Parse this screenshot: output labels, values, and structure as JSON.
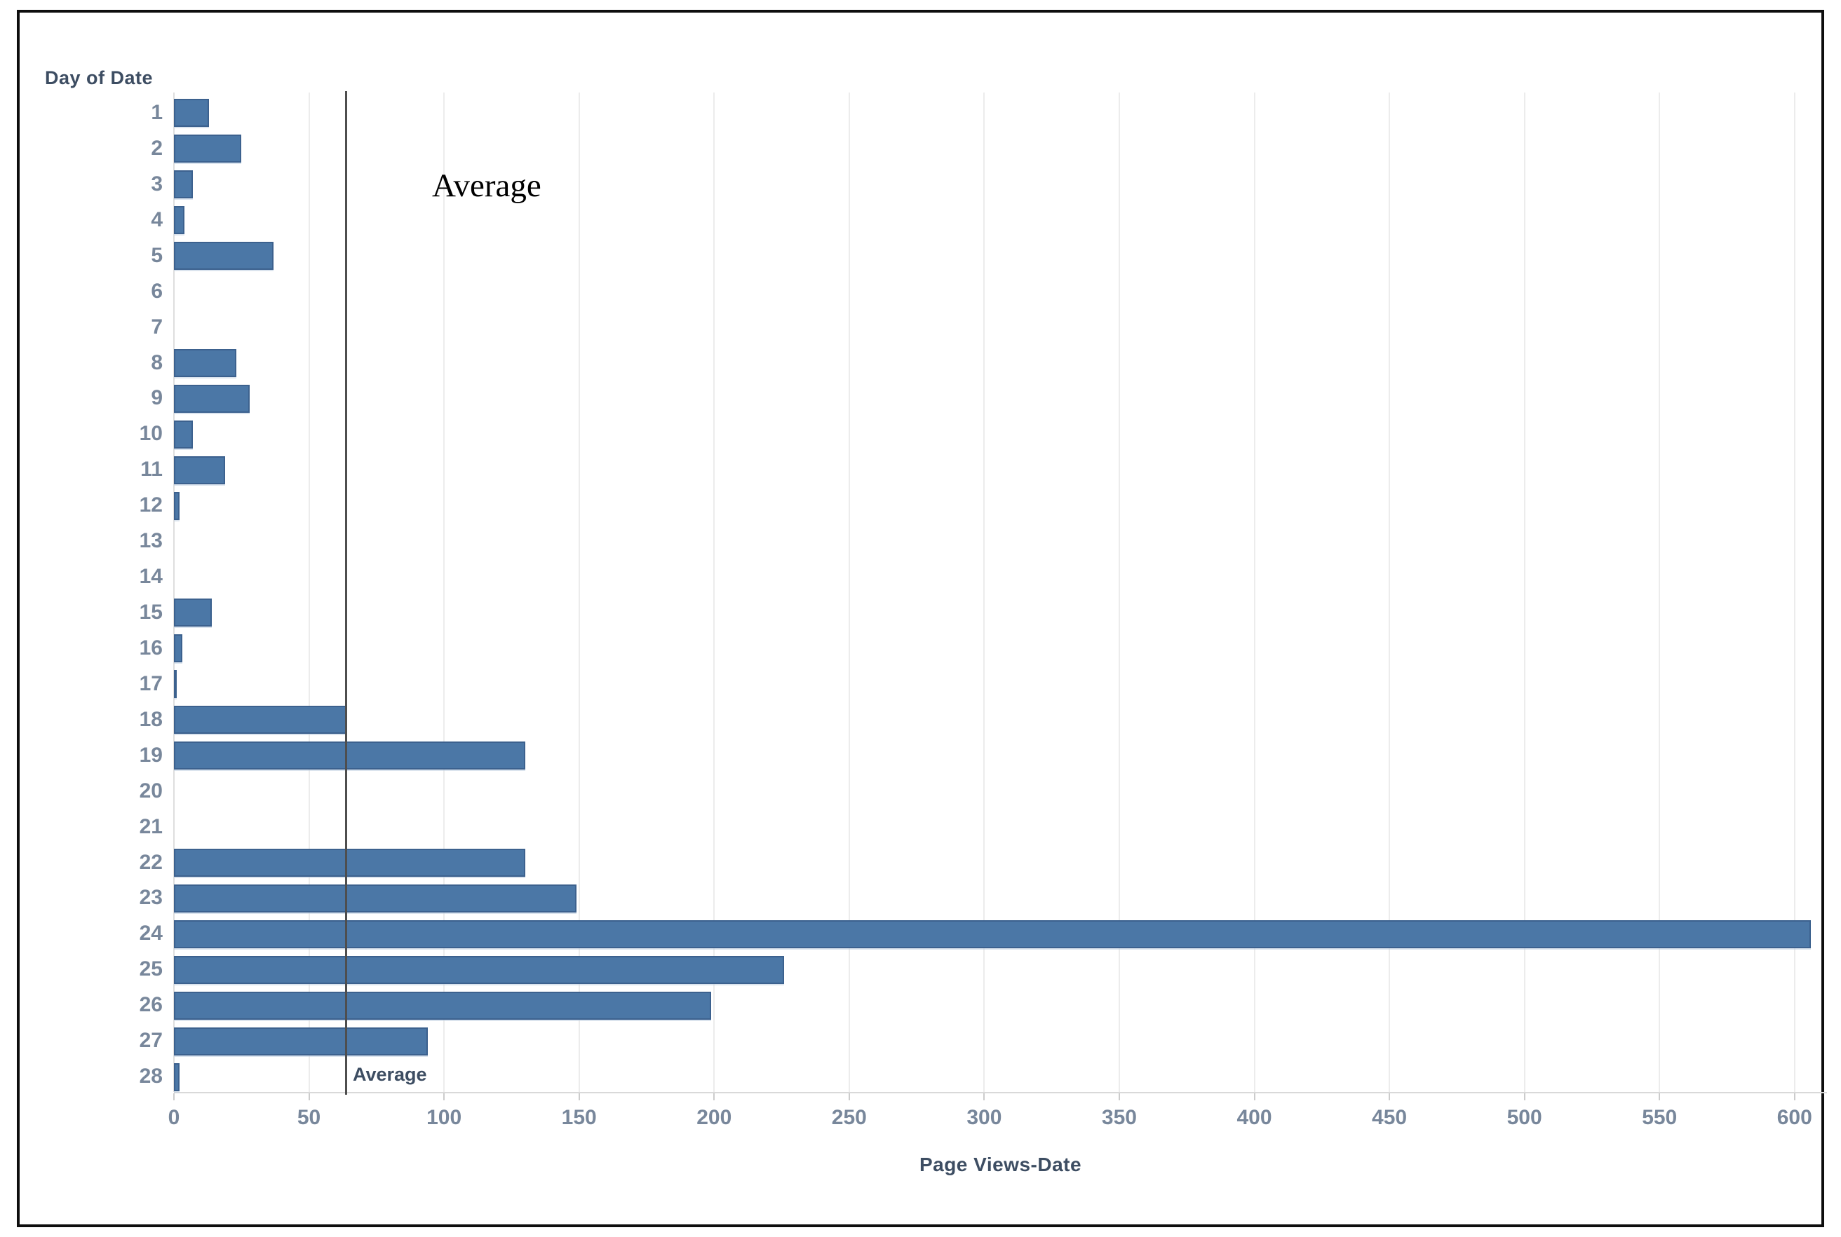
{
  "chart_data": {
    "type": "bar",
    "orientation": "horizontal",
    "y_axis_title": "Day of Date",
    "x_axis_title": "Page Views-Date",
    "categories": [
      "1",
      "2",
      "3",
      "4",
      "5",
      "6",
      "7",
      "8",
      "9",
      "10",
      "11",
      "12",
      "13",
      "14",
      "15",
      "16",
      "17",
      "18",
      "19",
      "20",
      "21",
      "22",
      "23",
      "24",
      "25",
      "26",
      "27",
      "28"
    ],
    "values": [
      13,
      25,
      7,
      4,
      37,
      0,
      0,
      23,
      28,
      7,
      19,
      2,
      0,
      0,
      14,
      3,
      1,
      64,
      130,
      0,
      0,
      130,
      149,
      606,
      226,
      199,
      94,
      2
    ],
    "x_ticks": [
      0,
      50,
      100,
      150,
      200,
      250,
      300,
      350,
      400,
      450,
      500,
      550,
      600
    ],
    "xlim": [
      0,
      612
    ],
    "grid": "vertical",
    "legend": "none",
    "average_line": {
      "value": 63.7,
      "label": "Average",
      "annotation_label": "Average"
    },
    "colors": {
      "bar_fill": "#4b77a6",
      "bar_border": "#3c618e",
      "gridline": "#ececec",
      "axis_line": "#d9d9d9",
      "tick_label": "#78879b",
      "axis_title": "#3d4d62",
      "average_line": "#4e4e4e",
      "annotation_text": "#000000",
      "figure_border": "#0e0e0e"
    }
  }
}
